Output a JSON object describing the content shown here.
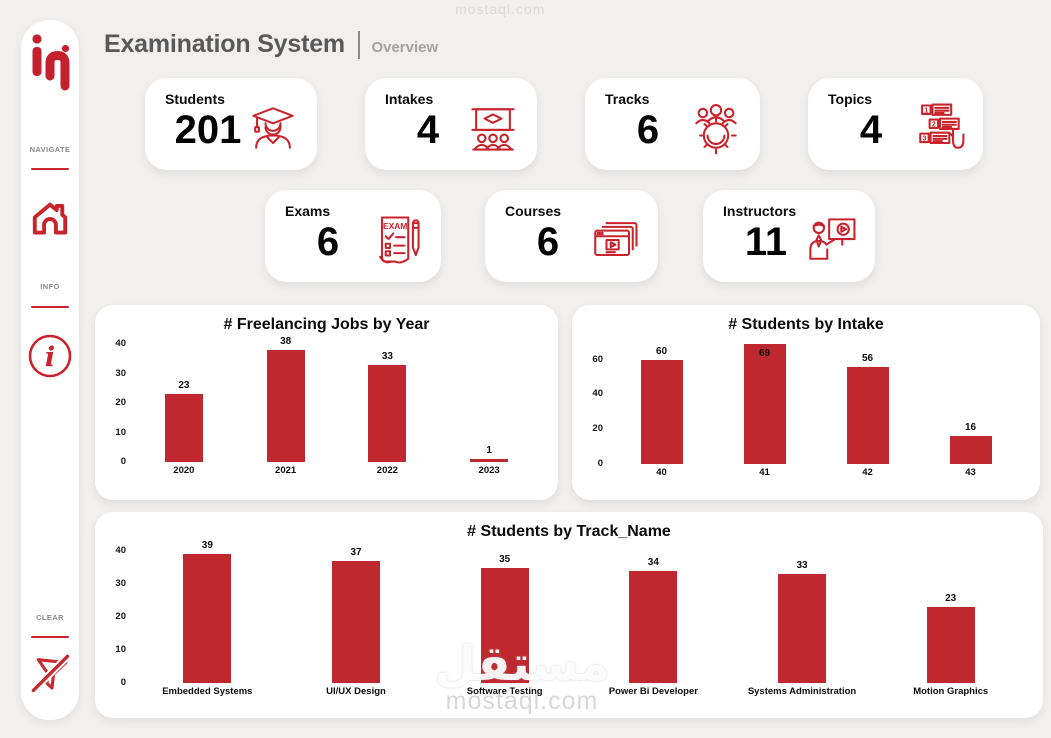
{
  "header": {
    "title": "Examination System",
    "subtitle": "Overview"
  },
  "sidebar": {
    "logo_text": "iTi",
    "sections": [
      {
        "label": "NAVIGATE",
        "icon": "home-icon"
      },
      {
        "label": "INFO",
        "icon": "info-icon"
      },
      {
        "label": "CLEAR",
        "icon": "clear-filter-icon"
      }
    ]
  },
  "kpis": {
    "row1": [
      {
        "label": "Students",
        "value": "201",
        "icon": "graduate-student-icon"
      },
      {
        "label": "Intakes",
        "value": "4",
        "icon": "classroom-icon"
      },
      {
        "label": "Tracks",
        "value": "6",
        "icon": "gear-team-icon"
      },
      {
        "label": "Topics",
        "value": "4",
        "icon": "numbered-list-icon"
      }
    ],
    "row2": [
      {
        "label": "Exams",
        "value": "6",
        "icon": "exam-sheet-icon"
      },
      {
        "label": "Courses",
        "value": "6",
        "icon": "course-windows-icon"
      },
      {
        "label": "Instructors",
        "value": "11",
        "icon": "instructor-icon"
      }
    ]
  },
  "chart_data": [
    {
      "type": "bar",
      "title": "# Freelancing Jobs by Year",
      "categories": [
        "2020",
        "2021",
        "2022",
        "2023"
      ],
      "values": [
        23,
        38,
        33,
        1
      ],
      "yticks": [
        0,
        10,
        20,
        30,
        40
      ],
      "ylim": [
        0,
        40
      ],
      "grid": false,
      "bar_color": "#c0282f"
    },
    {
      "type": "bar",
      "title": "# Students by Intake",
      "categories": [
        "40",
        "41",
        "42",
        "43"
      ],
      "values": [
        60,
        69,
        56,
        16
      ],
      "yticks": [
        0,
        20,
        40,
        60
      ],
      "ylim": [
        0,
        69
      ],
      "grid": false,
      "bar_color": "#c0282f"
    },
    {
      "type": "bar",
      "title": "# Students by Track_Name",
      "categories": [
        "Embedded Systems",
        "UI/UX Design",
        "Software Testing",
        "Power Bi Developer",
        "Systems Administration",
        "Motion Graphics"
      ],
      "values": [
        39,
        37,
        35,
        34,
        33,
        23
      ],
      "yticks": [
        0,
        10,
        20,
        30,
        40
      ],
      "ylim": [
        0,
        40
      ],
      "grid": false,
      "bar_color": "#c0282f"
    }
  ],
  "watermark": {
    "arabic": "مستقل",
    "latin": "mostaql.com"
  },
  "colors": {
    "bar": "#c0282f",
    "accent": "#c9242c",
    "logo": "#c5202e",
    "title_gray": "#595959",
    "subtitle_gray": "#a3a3a3",
    "background": "#f1f0ef"
  }
}
